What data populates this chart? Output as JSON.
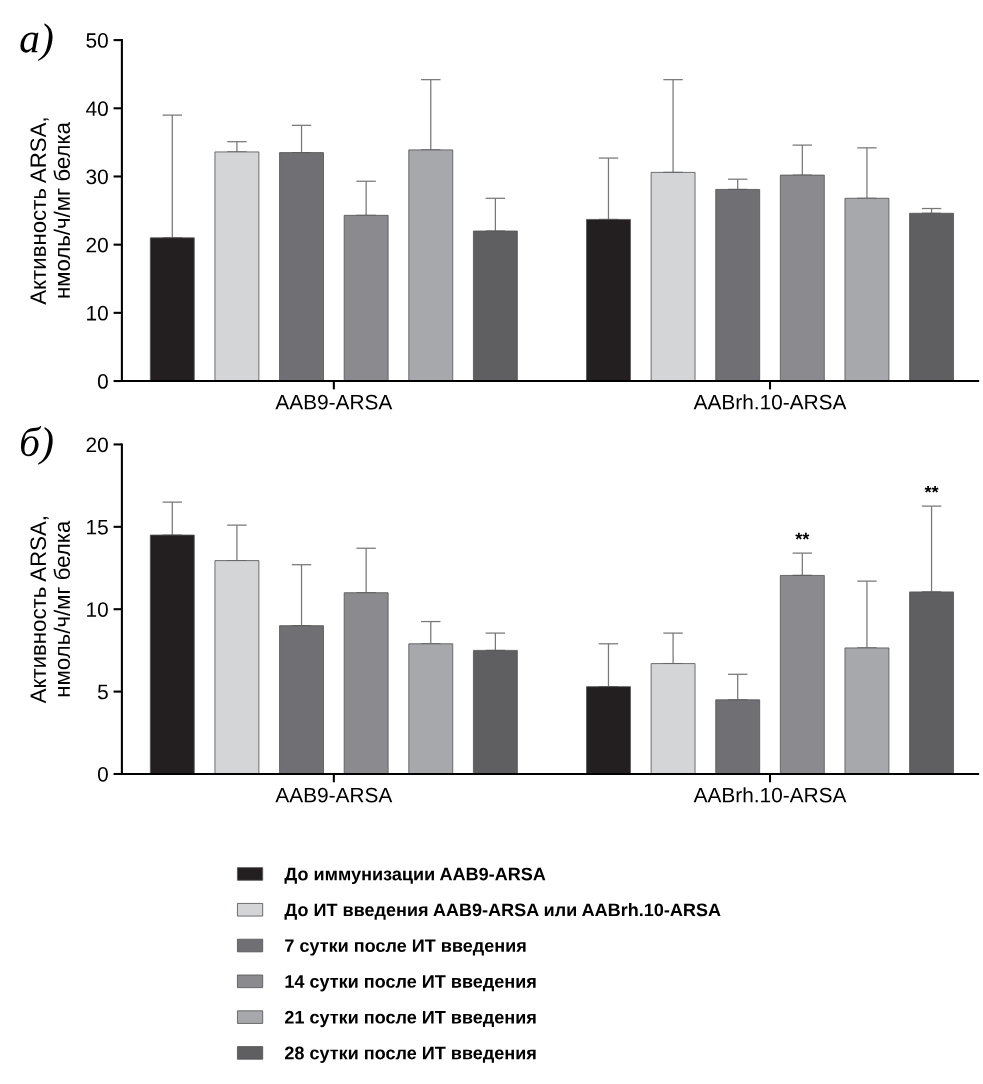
{
  "chart_data": [
    {
      "type": "bar",
      "title": "а)",
      "ylabel": "Активность ARSA,\nнмоль/ч/мг белка",
      "categories": [
        "AAB9-ARSA",
        "AABrh.10-ARSA"
      ],
      "ylim": [
        0,
        50
      ],
      "yticks": [
        0,
        10,
        20,
        30,
        40,
        50
      ],
      "grid": false,
      "legend": false,
      "series": [
        {
          "color": "#231f20",
          "values": [
            21,
            23.7
          ],
          "errors": [
            [
              21,
              39
            ],
            [
              23.7,
              32.7
            ]
          ]
        },
        {
          "color": "#d4d5d7",
          "values": [
            33.6,
            30.6
          ],
          "errors": [
            [
              33.6,
              35.1
            ],
            [
              30.6,
              44.2
            ]
          ]
        },
        {
          "color": "#707074",
          "values": [
            33.5,
            28.1
          ],
          "errors": [
            [
              33.5,
              37.5
            ],
            [
              28.1,
              29.6
            ]
          ]
        },
        {
          "color": "#8b8b8f",
          "values": [
            24.3,
            30.2
          ],
          "errors": [
            [
              24.3,
              29.3
            ],
            [
              30.2,
              34.6
            ]
          ]
        },
        {
          "color": "#a7a8ab",
          "values": [
            33.9,
            26.8
          ],
          "errors": [
            [
              33.9,
              44.2
            ],
            [
              26.8,
              34.2
            ]
          ]
        },
        {
          "color": "#5f5f62",
          "values": [
            22,
            24.6
          ],
          "errors": [
            [
              22,
              26.8
            ],
            [
              24.6,
              25.3
            ]
          ]
        }
      ]
    },
    {
      "type": "bar",
      "title": "б)",
      "ylabel": "Активность ARSA,\nнмоль/ч/мг белка",
      "categories": [
        "AAB9-ARSA",
        "AABrh.10-ARSA"
      ],
      "ylim": [
        0,
        20
      ],
      "yticks": [
        0,
        5,
        10,
        15,
        20
      ],
      "grid": false,
      "legend": "bottom",
      "annotations": [
        "**",
        "**"
      ],
      "series": [
        {
          "name": "До иммунизации AAB9-ARSA",
          "color": "#231f20",
          "values": [
            14.5,
            5.3
          ],
          "errors": [
            [
              14.5,
              16.5
            ],
            [
              5.3,
              7.9
            ]
          ]
        },
        {
          "name": "До ИТ введения AAB9-ARSA или AABrh.10-ARSA",
          "color": "#d4d5d7",
          "values": [
            12.95,
            6.7
          ],
          "errors": [
            [
              12.95,
              15.1
            ],
            [
              6.7,
              8.55
            ]
          ]
        },
        {
          "name": "7 сутки после ИТ введения",
          "color": "#707074",
          "values": [
            9,
            4.5
          ],
          "errors": [
            [
              9,
              12.7
            ],
            [
              4.5,
              6.05
            ]
          ]
        },
        {
          "name": "14 сутки после ИТ введения",
          "color": "#8b8b8f",
          "values": [
            11,
            12.05
          ],
          "errors": [
            [
              11,
              13.7
            ],
            [
              12.05,
              13.4
            ]
          ]
        },
        {
          "name": "21 сутки после ИТ введения",
          "color": "#a7a8ab",
          "values": [
            7.9,
            7.65
          ],
          "errors": [
            [
              7.9,
              9.25
            ],
            [
              7.65,
              11.7
            ]
          ]
        },
        {
          "name": "28 сутки после ИТ введения",
          "color": "#5f5f62",
          "values": [
            7.5,
            11.05
          ],
          "errors": [
            [
              7.5,
              8.55
            ],
            [
              11.05,
              16.25
            ]
          ]
        }
      ]
    }
  ]
}
